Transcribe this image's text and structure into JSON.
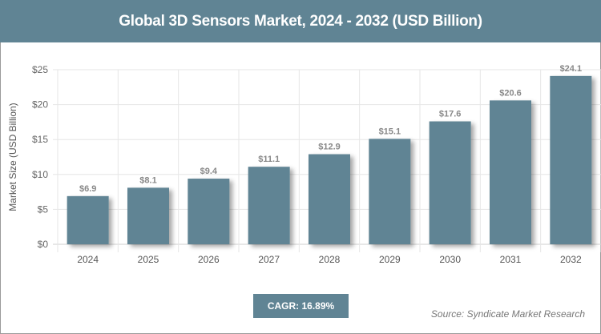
{
  "chart_data": {
    "type": "bar",
    "title": "Global 3D Sensors Market, 2024 - 2032 (USD Billion)",
    "categories": [
      "2024",
      "2025",
      "2026",
      "2027",
      "2028",
      "2029",
      "2030",
      "2031",
      "2032"
    ],
    "values": [
      6.9,
      8.1,
      9.4,
      11.1,
      12.9,
      15.1,
      17.6,
      20.6,
      24.1
    ],
    "data_labels": [
      "$6.9",
      "$8.1",
      "$9.4",
      "$11.1",
      "$12.9",
      "$15.1",
      "$17.6",
      "$20.6",
      "$24.1"
    ],
    "xlabel": "",
    "ylabel": "Market Size (USD Billion)",
    "ylim": [
      0,
      25
    ],
    "yticks": [
      0,
      5,
      10,
      15,
      20,
      25
    ],
    "ytick_labels": [
      "$0",
      "$5",
      "$10",
      "$15",
      "$20",
      "$25"
    ],
    "grid": true,
    "bar_color": "#608494"
  },
  "cagr_label": "CAGR: 16.89%",
  "source": "Source: Syndicate Market Research"
}
